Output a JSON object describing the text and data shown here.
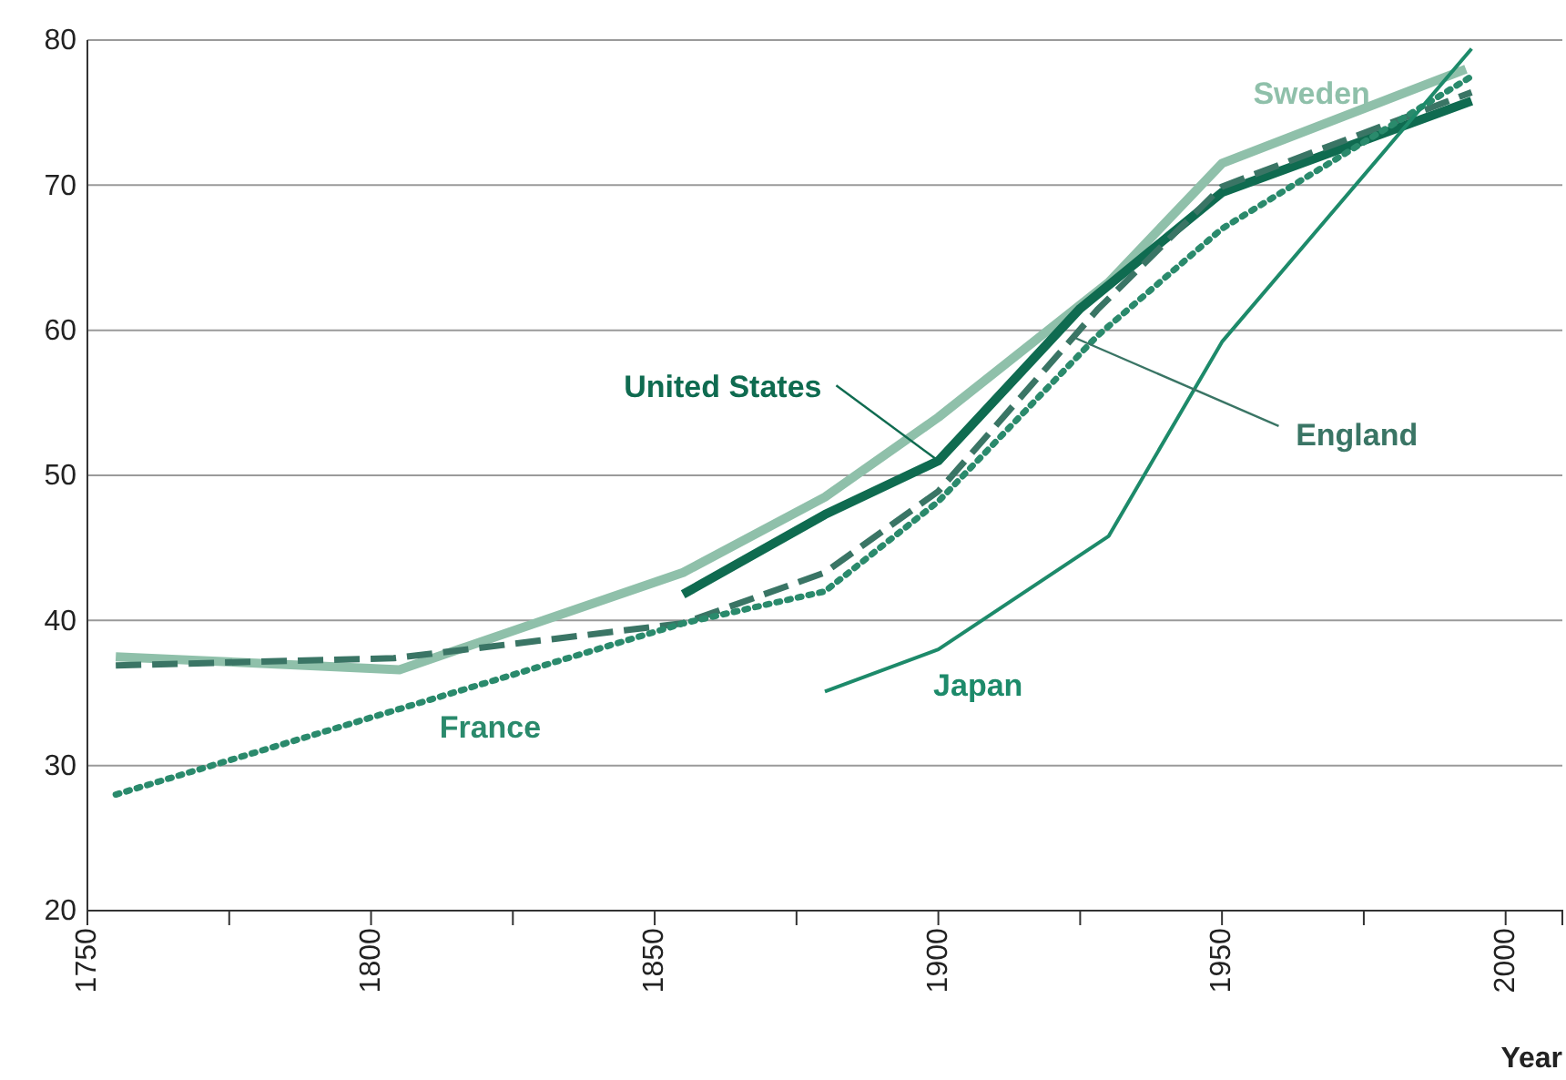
{
  "chart_data": {
    "type": "line",
    "xlabel": "Year",
    "xlim": [
      1750,
      2010
    ],
    "xticks": [
      1750,
      {
        "value": 1775,
        "label": null
      },
      1800,
      {
        "value": 1825,
        "label": null
      },
      1850,
      {
        "value": 1875,
        "label": null
      },
      1900,
      {
        "value": 1925,
        "label": null
      },
      1950,
      {
        "value": 1975,
        "label": null
      },
      2000
    ],
    "ylim": [
      20,
      80
    ],
    "yticks": [
      20,
      30,
      40,
      50,
      60,
      70,
      80
    ],
    "grid": "y",
    "legend": false,
    "marker": "none",
    "series": [
      {
        "name": "Sweden",
        "color": "#8fc0aa",
        "line_style": "solid",
        "x": [
          1755,
          1805,
          1855,
          1880,
          1900,
          1930,
          1950,
          1993
        ],
        "values": [
          37.5,
          36.6,
          43.3,
          48.5,
          54,
          63.3,
          71.5,
          78
        ]
      },
      {
        "name": "United States",
        "color": "#0f6b50",
        "line_style": "solid",
        "x": [
          1855,
          1880,
          1900,
          1925,
          1950,
          1994
        ],
        "values": [
          41.8,
          47.3,
          51,
          61.5,
          69.5,
          75.8
        ]
      },
      {
        "name": "England",
        "color": "#3a7565",
        "line_style": "dashed",
        "x": [
          1755,
          1804,
          1855,
          1880,
          1900,
          1928,
          1950,
          1994
        ],
        "values": [
          36.9,
          37.4,
          39.8,
          43.3,
          48.9,
          61.4,
          69.9,
          76.4
        ]
      },
      {
        "name": "France",
        "color": "#2a8a6c",
        "line_style": "dotted",
        "x": [
          1755,
          1855,
          1880,
          1900,
          1928,
          1950,
          1994
        ],
        "values": [
          28,
          39.8,
          42,
          48.2,
          59.6,
          67,
          77.5
        ]
      },
      {
        "name": "Japan",
        "color": "#1d8a6a",
        "line_style": "solid",
        "x": [
          1880,
          1900,
          1930,
          1950,
          1994
        ],
        "values": [
          35.1,
          38,
          45.8,
          59.2,
          79.4
        ]
      }
    ]
  }
}
